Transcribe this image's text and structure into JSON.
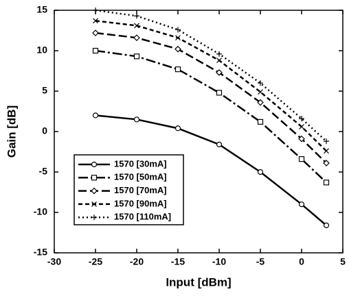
{
  "chart_data": {
    "type": "line",
    "x_label": "Input [dBm]",
    "y_label": "Gain [dB]",
    "x": [
      -25,
      -20,
      -15,
      -10,
      -5,
      0,
      3
    ],
    "series": [
      {
        "name": "1570 [30mA]",
        "color": "#000000",
        "marker": "circle",
        "dash": "solid",
        "values": [
          2,
          1.5,
          0.4,
          -1.6,
          -5,
          -9,
          -11.6
        ]
      },
      {
        "name": "1570 [50mA]",
        "color": "#000000",
        "marker": "square",
        "dash": "dashdot",
        "values": [
          10,
          9.3,
          7.7,
          4.8,
          1.2,
          -3.4,
          -6.3
        ]
      },
      {
        "name": "1570 [70mA]",
        "color": "#000000",
        "marker": "diamond",
        "dash": "longdash",
        "values": [
          12.2,
          11.6,
          10.2,
          7.3,
          3.6,
          -0.9,
          -3.9
        ]
      },
      {
        "name": "1570 [90mA]",
        "color": "#000000",
        "marker": "cross",
        "dash": "dashed",
        "values": [
          13.7,
          13.1,
          11.6,
          8.8,
          4.9,
          0.6,
          -2.4
        ]
      },
      {
        "name": "1570 [110mA]",
        "color": "#000000",
        "marker": "plus",
        "dash": "dotted",
        "values": [
          15,
          14.3,
          12.6,
          9.6,
          6,
          1.6,
          -1.2
        ]
      }
    ],
    "xlim": [
      -30,
      5
    ],
    "xticks": [
      -30,
      -25,
      -20,
      -15,
      -10,
      -5,
      0,
      5
    ],
    "ylim": [
      -15,
      15
    ],
    "yticks": [
      -15,
      -10,
      -5,
      0,
      5,
      10,
      15
    ],
    "grid": false,
    "legend": "lower left"
  }
}
